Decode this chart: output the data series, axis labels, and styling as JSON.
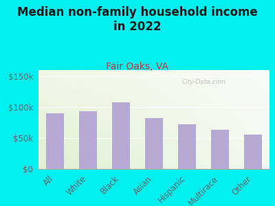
{
  "categories": [
    "All",
    "White",
    "Black",
    "Asian",
    "Hispanic",
    "Multirace",
    "Other"
  ],
  "values": [
    90000,
    93000,
    108000,
    82000,
    72000,
    63000,
    56000
  ],
  "bar_color": "#b8a9d4",
  "background_outer": "#00efef",
  "title": "Median non-family household income\nin 2022",
  "subtitle": "Fair Oaks, VA",
  "title_color": "#1a1a1a",
  "subtitle_color": "#cc3333",
  "axis_label_color": "#666666",
  "tick_color": "#666666",
  "ylim": [
    0,
    160000
  ],
  "yticks": [
    0,
    50000,
    100000,
    150000
  ],
  "ytick_labels": [
    "$0",
    "$50k",
    "$100k",
    "$150k"
  ],
  "watermark": "City-Data.com",
  "title_fontsize": 12,
  "subtitle_fontsize": 10,
  "tick_fontsize": 8.5
}
